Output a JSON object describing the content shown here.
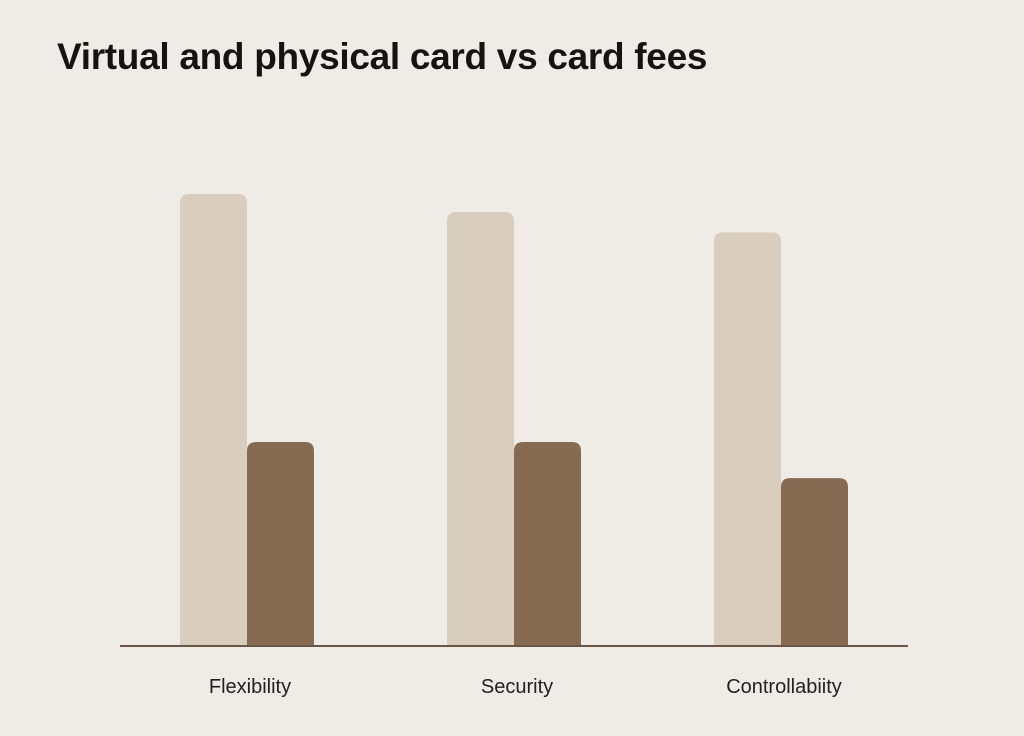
{
  "title": "Virtual and physical card vs card fees",
  "colors": {
    "background": "#efece8",
    "series_1": "#d9cdbd",
    "series_2": "#866a51",
    "axis": "#6b5544",
    "text": "#151412"
  },
  "chart_data": {
    "type": "bar",
    "title": "Virtual and physical card vs card fees",
    "xlabel": "",
    "ylabel": "",
    "categories": [
      "Flexibility",
      "Security",
      "Controllabiity"
    ],
    "series": [
      {
        "color": "#d9cdbd",
        "values": [
          100,
          96,
          91.5
        ]
      },
      {
        "color": "#866a51",
        "values": [
          45,
          45,
          37
        ]
      }
    ],
    "ylim": [
      0,
      100
    ],
    "grid": false,
    "legend": "none",
    "y_axis_shown": false
  }
}
